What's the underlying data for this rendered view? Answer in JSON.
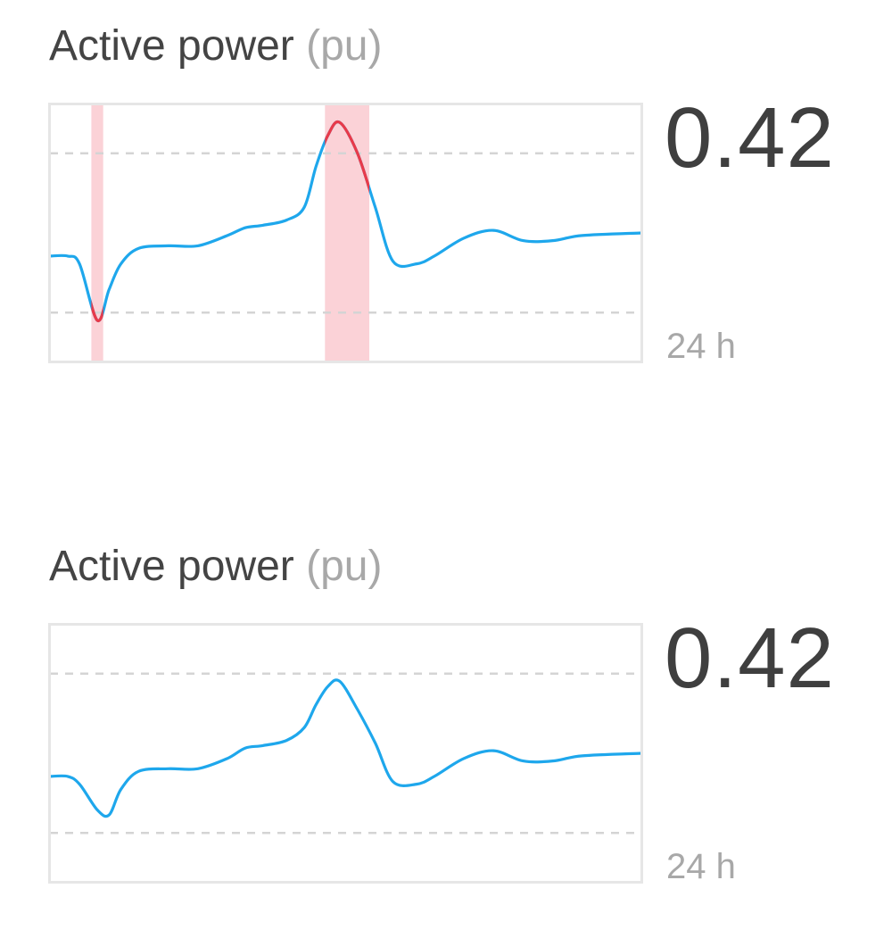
{
  "cards": [
    {
      "title": "Active power",
      "unit": "(pu)",
      "value": "0.42",
      "period": "24 h",
      "highlight_violations": true
    },
    {
      "title": "Active power",
      "unit": "(pu)",
      "value": "0.42",
      "period": "24 h",
      "highlight_violations": false
    }
  ],
  "chart_data": [
    {
      "type": "line",
      "title": "Active power (pu)",
      "xlabel": "24 h",
      "ylim": [
        0,
        1
      ],
      "thresholds": {
        "upper": 0.81,
        "lower": 0.19
      },
      "grid": "dashed threshold lines",
      "series": [
        {
          "x": [
            0,
            0.03,
            0.05,
            0.08,
            0.1,
            0.12,
            0.15,
            0.2,
            0.25,
            0.3,
            0.33,
            0.36,
            0.4,
            0.43,
            0.45,
            0.47,
            0.49,
            0.52,
            0.55,
            0.58,
            0.62,
            0.65,
            0.7,
            0.75,
            0.8,
            0.85,
            0.9,
            1.0
          ],
          "values": [
            0.41,
            0.41,
            0.38,
            0.16,
            0.28,
            0.38,
            0.44,
            0.45,
            0.45,
            0.49,
            0.52,
            0.53,
            0.55,
            0.6,
            0.76,
            0.88,
            0.93,
            0.81,
            0.6,
            0.39,
            0.38,
            0.41,
            0.48,
            0.51,
            0.47,
            0.47,
            0.49,
            0.5
          ],
          "color": "#1ea7ec",
          "violation_color": "#e83a4a"
        }
      ],
      "violation_bands": [
        [
          0.07,
          0.09
        ],
        [
          0.465,
          0.54
        ]
      ],
      "band_color": "#fbd2d7"
    },
    {
      "type": "line",
      "title": "Active power (pu)",
      "xlabel": "24 h",
      "ylim": [
        0,
        1
      ],
      "thresholds": {
        "upper": 0.81,
        "lower": 0.19
      },
      "grid": "dashed threshold lines",
      "series": [
        {
          "x": [
            0,
            0.03,
            0.05,
            0.08,
            0.1,
            0.12,
            0.15,
            0.2,
            0.25,
            0.3,
            0.33,
            0.36,
            0.4,
            0.43,
            0.45,
            0.47,
            0.49,
            0.52,
            0.55,
            0.58,
            0.62,
            0.65,
            0.7,
            0.75,
            0.8,
            0.85,
            0.9,
            1.0
          ],
          "values": [
            0.41,
            0.41,
            0.38,
            0.28,
            0.26,
            0.36,
            0.43,
            0.44,
            0.44,
            0.48,
            0.52,
            0.53,
            0.55,
            0.6,
            0.69,
            0.76,
            0.78,
            0.67,
            0.54,
            0.39,
            0.38,
            0.41,
            0.48,
            0.51,
            0.47,
            0.47,
            0.49,
            0.5
          ],
          "color": "#1ea7ec",
          "violation_color": "#e83a4a"
        }
      ],
      "violation_bands": [],
      "band_color": "#fbd2d7"
    }
  ]
}
